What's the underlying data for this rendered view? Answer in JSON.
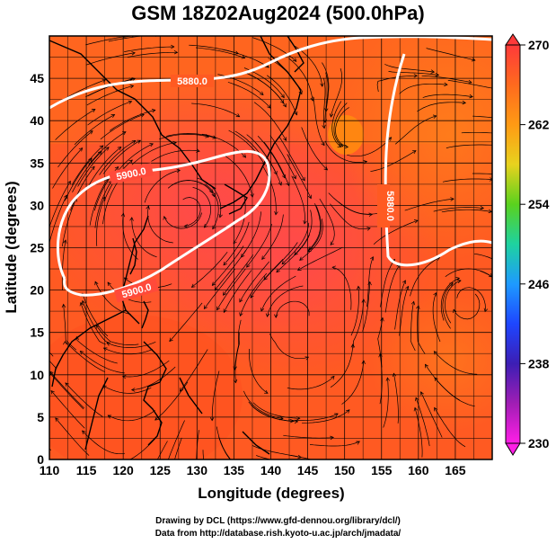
{
  "title": "GSM 18Z02Aug2024 (500.0hPa)",
  "x_axis": {
    "label": "Longitude (degrees)",
    "range": [
      110,
      170
    ],
    "ticks": [
      "110",
      "115",
      "120",
      "125",
      "130",
      "135",
      "140",
      "145",
      "150",
      "155",
      "160",
      "165"
    ]
  },
  "y_axis": {
    "label": "Latitude (degrees)",
    "range": [
      0,
      50
    ],
    "ticks": [
      "0",
      "5",
      "10",
      "15",
      "20",
      "25",
      "30",
      "35",
      "40",
      "45"
    ]
  },
  "colorbar": {
    "range": [
      230,
      270
    ],
    "labels": [
      "270",
      "262",
      "254",
      "246",
      "238",
      "230"
    ],
    "colors": [
      "#ff3a3a",
      "#ff6a1e",
      "#ff9a14",
      "#e8d21e",
      "#5ad21e",
      "#1ed2a0",
      "#1e9aff",
      "#1e46ff",
      "#3c1eb4",
      "#a01eb4",
      "#ff1ee6"
    ]
  },
  "contours": [
    {
      "label": "5880.0"
    },
    {
      "label": "5900.0"
    },
    {
      "label": "5900.0"
    },
    {
      "label": "5880.0"
    }
  ],
  "footer": {
    "credit": "Drawing by DCL (https://www.gfd-dennou.org/library/dcl/)",
    "source": "Data from http://database.rish.kyoto-u.ac.jp/arch/jmadata/"
  }
}
